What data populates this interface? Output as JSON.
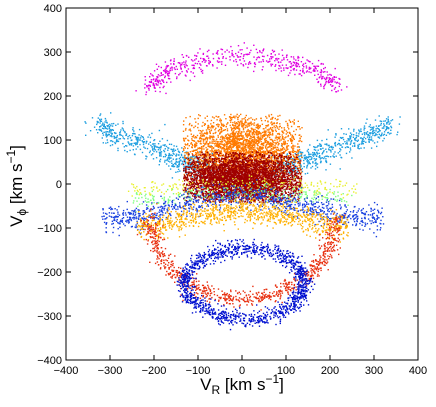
{
  "chart_data": {
    "type": "scatter",
    "title": "",
    "xlabel": {
      "main": "V",
      "sub": "R",
      "rest": " [km s",
      "sup": "−1",
      "close": "]"
    },
    "ylabel": {
      "main": "V",
      "sub": "ϕ",
      "rest": " [km s",
      "sup": "−1",
      "close": "]"
    },
    "xlim": [
      -400,
      400
    ],
    "ylim": [
      -400,
      400
    ],
    "xticks": [
      -400,
      -300,
      -200,
      -100,
      0,
      100,
      200,
      300,
      400
    ],
    "yticks": [
      -400,
      -300,
      -200,
      -100,
      0,
      100,
      200,
      300,
      400
    ],
    "xtick_labels": [
      "−400",
      "−300",
      "−200",
      "−100",
      "0",
      "100",
      "200",
      "300",
      "400"
    ],
    "ytick_labels": [
      "−400",
      "−300",
      "−200",
      "−100",
      "0",
      "100",
      "200",
      "300",
      "400"
    ],
    "grid": false,
    "legend": false,
    "series": [
      {
        "color": "#e000e0",
        "shape": "arc",
        "center": [
          0,
          205
        ],
        "rx": 215,
        "ry": 140,
        "t_range": [
          190,
          350
        ],
        "n": 520,
        "spread": 12
      },
      {
        "color": "#1e9fe0",
        "shape": "curve",
        "points": [
          [
            -335,
            135
          ],
          [
            -280,
            110
          ],
          [
            -200,
            85
          ],
          [
            -140,
            55
          ],
          [
            -100,
            40
          ],
          [
            -60,
            30
          ]
        ],
        "n": 600,
        "spread": 14
      },
      {
        "color": "#1e9fe0",
        "shape": "curve",
        "points": [
          [
            60,
            30
          ],
          [
            100,
            40
          ],
          [
            140,
            55
          ],
          [
            200,
            85
          ],
          [
            280,
            110
          ],
          [
            335,
            135
          ]
        ],
        "n": 600,
        "spread": 14
      },
      {
        "color": "#ff7a00",
        "shape": "blob",
        "center": [
          0,
          75
        ],
        "sx": 75,
        "sy": 42,
        "xmax": 135,
        "ymin": 0,
        "ymax": 160,
        "n": 2600
      },
      {
        "color": "#a00000",
        "shape": "blob",
        "center": [
          0,
          10
        ],
        "sx": 75,
        "sy": 30,
        "xmax": 135,
        "ymin": -40,
        "ymax": 75,
        "n": 3800
      },
      {
        "color": "#e8f030",
        "shape": "band",
        "x": [
          -260,
          260
        ],
        "y_center": -5,
        "amp": 5,
        "spread": 9,
        "n": 220
      },
      {
        "color": "#80ff80",
        "shape": "band",
        "x": [
          -250,
          250
        ],
        "y_center": -28,
        "amp": 8,
        "spread": 10,
        "n": 260
      },
      {
        "color": "#1840e0",
        "shape": "band",
        "x": [
          -320,
          320
        ],
        "y_center": -50,
        "amp": 25,
        "spread": 14,
        "n": 900
      },
      {
        "color": "#ffb000",
        "shape": "band",
        "x": [
          -240,
          240
        ],
        "y_center": -80,
        "amp": 20,
        "spread": 14,
        "n": 900
      },
      {
        "color": "#e83010",
        "shape": "arc",
        "center": [
          0,
          -75
        ],
        "rx": 210,
        "ry": 185,
        "t_range": [
          180,
          360
        ],
        "n": 800,
        "spread": 10
      },
      {
        "color": "#0010d0",
        "shape": "ring",
        "center": [
          5,
          -225
        ],
        "rx": 135,
        "ry": 80,
        "n": 1300,
        "spread": 9
      }
    ]
  }
}
